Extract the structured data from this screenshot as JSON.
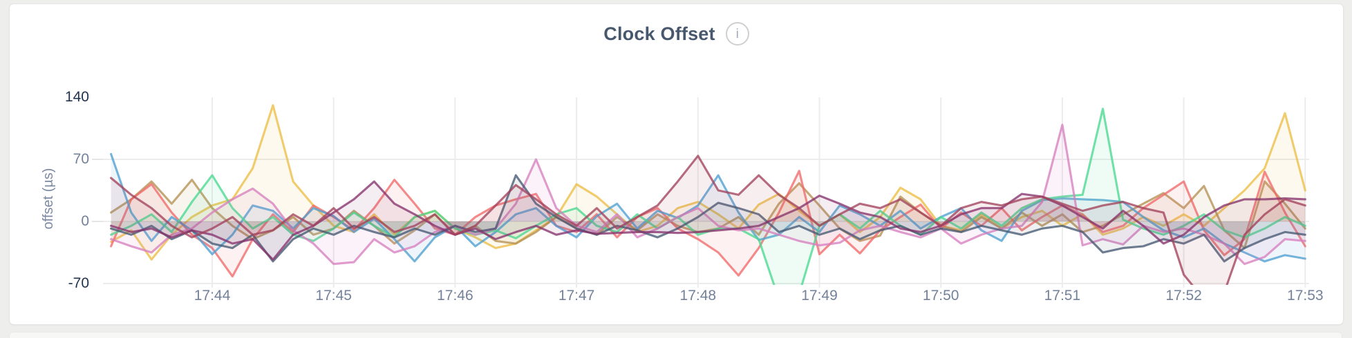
{
  "panel": {
    "info_icon": "i"
  },
  "chart_data": {
    "type": "line",
    "title": "Clock Offset",
    "xlabel": "",
    "ylabel": "offset (µs)",
    "ylim": [
      -70,
      140
    ],
    "grid": true,
    "legend_position": "none",
    "x_start": "17:43:10",
    "x_step_seconds": 10,
    "x_ticks": [
      "17:44",
      "17:45",
      "17:46",
      "17:47",
      "17:48",
      "17:49",
      "17:50",
      "17:51",
      "17:52",
      "17:53"
    ],
    "y_ticks": [
      {
        "label": "140",
        "value": 140,
        "emphasis": true,
        "stub": false
      },
      {
        "label": "70",
        "value": 70,
        "emphasis": false,
        "stub": true
      },
      {
        "label": "0",
        "value": 0,
        "emphasis": false,
        "stub": true
      },
      {
        "label": "-70",
        "value": -70,
        "emphasis": true,
        "stub": false
      }
    ],
    "colors": {
      "title": "#47586e",
      "axis_tick_minor": "#73819a",
      "axis_tick_major": "#22334e",
      "gridline": "#ececec",
      "info_icon_ring": "#cfcfcf"
    },
    "series": [
      {
        "name": "gold",
        "color": "#edbe45",
        "values": [
          -23,
          -10,
          -43,
          -15,
          5,
          18,
          25,
          60,
          131,
          45,
          18,
          -5,
          -12,
          8,
          -15,
          5,
          12,
          -8,
          -18,
          -30,
          -25,
          -10,
          5,
          42,
          28,
          8,
          -12,
          -5,
          15,
          22,
          8,
          -8,
          19,
          31,
          12,
          -5,
          8,
          -12,
          5,
          38,
          25,
          -5,
          -10,
          8,
          -8,
          5,
          12,
          -5,
          8,
          -15,
          -8,
          5,
          -5,
          8,
          -5,
          15,
          35,
          60,
          122,
          35
        ]
      },
      {
        "name": "tan",
        "color": "#b59153",
        "values": [
          10,
          25,
          45,
          20,
          47,
          15,
          -5,
          -20,
          -10,
          5,
          -15,
          -8,
          12,
          -5,
          -25,
          -10,
          8,
          -15,
          -5,
          -22,
          -25,
          -12,
          5,
          -8,
          -15,
          5,
          -10,
          8,
          -5,
          -12,
          -8,
          5,
          -15,
          20,
          43,
          18,
          -8,
          -22,
          -16,
          28,
          10,
          -5,
          -12,
          5,
          -8,
          10,
          -5,
          8,
          -12,
          -5,
          8,
          20,
          32,
          15,
          40,
          -10,
          -30,
          45,
          20,
          -8
        ]
      },
      {
        "name": "coral",
        "color": "#f16969",
        "values": [
          -28,
          25,
          42,
          10,
          -15,
          -30,
          -62,
          -20,
          8,
          -12,
          18,
          5,
          -10,
          15,
          47,
          20,
          -8,
          -15,
          5,
          18,
          25,
          31,
          -5,
          -12,
          8,
          -18,
          5,
          15,
          -8,
          -20,
          -35,
          -61,
          -30,
          10,
          57,
          -37,
          -15,
          -36,
          -10,
          5,
          19,
          -8,
          10,
          -5,
          15,
          -10,
          5,
          18,
          8,
          -12,
          -5,
          15,
          30,
          45,
          -10,
          -38,
          -20,
          56,
          10,
          -28
        ]
      },
      {
        "name": "blue",
        "color": "#4e9fd1",
        "values": [
          76,
          10,
          -22,
          5,
          -10,
          -37,
          -15,
          18,
          12,
          -8,
          15,
          6,
          -12,
          3,
          -20,
          -45,
          -18,
          -5,
          -28,
          -12,
          8,
          15,
          -5,
          -18,
          6,
          20,
          -8,
          12,
          4,
          18,
          52,
          10,
          -21,
          -15,
          5,
          -12,
          18,
          8,
          -5,
          12,
          -8,
          5,
          15,
          -10,
          -22,
          12,
          24,
          26,
          25,
          24,
          22,
          5,
          -10,
          -18,
          -8,
          -25,
          -35,
          -45,
          -38,
          -42
        ]
      },
      {
        "name": "green",
        "color": "#49d990",
        "values": [
          -15,
          -5,
          8,
          -12,
          22,
          52,
          15,
          -8,
          5,
          -15,
          -22,
          -8,
          10,
          -5,
          -18,
          5,
          12,
          -8,
          -15,
          -10,
          -19,
          -5,
          8,
          15,
          -5,
          -12,
          8,
          -8,
          5,
          -15,
          -8,
          -8,
          -20,
          -88,
          -82,
          -5,
          8,
          -8,
          12,
          -5,
          -15,
          5,
          -8,
          10,
          -5,
          15,
          25,
          28,
          30,
          127,
          2,
          -8,
          -15,
          -5,
          8,
          -10,
          -18,
          -8,
          5,
          -5
        ]
      },
      {
        "name": "orchid",
        "color": "#d77fbf",
        "values": [
          -20,
          -28,
          -35,
          -15,
          -8,
          10,
          25,
          37,
          20,
          -10,
          -25,
          -48,
          -46,
          -20,
          -35,
          -28,
          -12,
          -5,
          -15,
          -8,
          20,
          70,
          15,
          -5,
          -12,
          8,
          -18,
          -8,
          5,
          15,
          -5,
          -10,
          -8,
          -15,
          -22,
          -27,
          -24,
          -10,
          -5,
          -12,
          -18,
          -8,
          -25,
          -15,
          -8,
          -5,
          22,
          109,
          -27,
          -20,
          -26,
          -5,
          -12,
          -8,
          -15,
          -25,
          -48,
          -40,
          -20,
          -22
        ]
      },
      {
        "name": "slate",
        "color": "#475872",
        "values": [
          -8,
          -15,
          -5,
          -20,
          -10,
          -25,
          -30,
          -15,
          -45,
          -20,
          -8,
          -15,
          -5,
          -12,
          -18,
          -8,
          -15,
          -5,
          -12,
          -8,
          52,
          20,
          5,
          -8,
          -15,
          -5,
          -10,
          -18,
          -8,
          5,
          21,
          15,
          8,
          -12,
          -5,
          -15,
          -8,
          -20,
          -10,
          -5,
          -15,
          -8,
          -12,
          -5,
          -10,
          -15,
          -8,
          -5,
          -12,
          -35,
          -30,
          -28,
          -20,
          -25,
          -15,
          -45,
          -30,
          -20,
          -12,
          -15
        ]
      },
      {
        "name": "plum",
        "color": "#87326d",
        "values": [
          -5,
          -12,
          -8,
          -18,
          -10,
          -15,
          -25,
          -20,
          -43,
          -15,
          -5,
          10,
          25,
          45,
          20,
          8,
          -5,
          -15,
          -8,
          -20,
          -12,
          -5,
          -15,
          -10,
          -14,
          -13,
          -12,
          -12,
          -13,
          -12,
          -10,
          -8,
          -5,
          5,
          15,
          29,
          20,
          10,
          5,
          -8,
          -12,
          -5,
          8,
          15,
          15,
          31,
          28,
          18,
          5,
          -8,
          12,
          -5,
          -25,
          -15,
          5,
          18,
          25,
          25,
          26,
          25
        ]
      },
      {
        "name": "maroon",
        "color": "#a3415b",
        "values": [
          49,
          30,
          15,
          -5,
          -18,
          -8,
          5,
          -15,
          -10,
          8,
          -5,
          15,
          -8,
          5,
          -12,
          -5,
          8,
          -15,
          -5,
          18,
          41,
          25,
          8,
          -5,
          15,
          -8,
          5,
          18,
          45,
          74,
          35,
          30,
          52,
          30,
          15,
          -5,
          8,
          20,
          15,
          25,
          10,
          -5,
          15,
          22,
          18,
          25,
          28,
          20,
          12,
          18,
          22,
          15,
          10,
          -60,
          -88,
          -80,
          -15,
          8,
          25,
          18
        ]
      }
    ]
  }
}
